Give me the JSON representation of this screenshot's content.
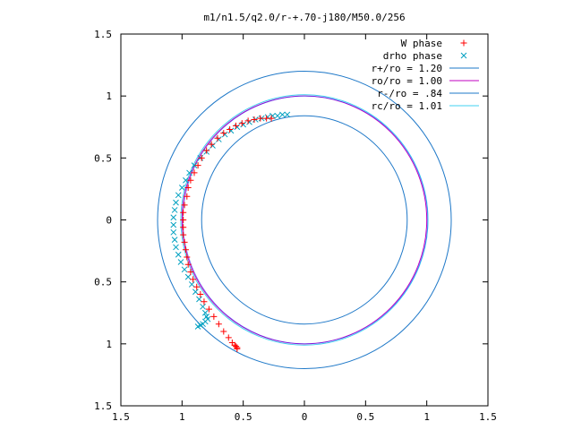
{
  "colors": {
    "w_phase": "#ff0000",
    "drho_phase": "#00a0c0",
    "r_plus": "#1e78c8",
    "ro": "#c000c0",
    "r_minus": "#1e78c8",
    "rc": "#40d0f0",
    "ro_overlay": "#2040ff",
    "axis": "#000000"
  },
  "chart_data": {
    "type": "scatter",
    "title": "m1/n1.5/q2.0/r-+.70-j180/M50.0/256",
    "xlabel": "",
    "ylabel": "",
    "xlim": [
      -1.5,
      1.5
    ],
    "ylim": [
      -1.5,
      1.5
    ],
    "x_ticks": [
      {
        "value": -1.5,
        "label": "1.5"
      },
      {
        "value": -1.0,
        "label": "1"
      },
      {
        "value": -0.5,
        "label": "0.5"
      },
      {
        "value": 0,
        "label": "0"
      },
      {
        "value": 0.5,
        "label": "0.5"
      },
      {
        "value": 1.0,
        "label": "1"
      },
      {
        "value": 1.5,
        "label": "1.5"
      }
    ],
    "y_ticks": [
      {
        "value": 1.5,
        "label": "1.5"
      },
      {
        "value": 1.0,
        "label": "1"
      },
      {
        "value": 0.5,
        "label": "0.5"
      },
      {
        "value": 0,
        "label": "0"
      },
      {
        "value": -0.5,
        "label": "0.5"
      },
      {
        "value": -1.0,
        "label": "1"
      },
      {
        "value": -1.5,
        "label": "1.5"
      }
    ],
    "grid": false,
    "legend_position": "top-right",
    "series": [
      {
        "name": "W phase",
        "marker": "plus",
        "points": [
          [
            -0.27,
            0.82
          ],
          [
            -0.31,
            0.82
          ],
          [
            -0.36,
            0.82
          ],
          [
            -0.41,
            0.81
          ],
          [
            -0.46,
            0.8
          ],
          [
            -0.51,
            0.78
          ],
          [
            -0.56,
            0.76
          ],
          [
            -0.61,
            0.73
          ],
          [
            -0.66,
            0.7
          ],
          [
            -0.71,
            0.66
          ],
          [
            -0.76,
            0.61
          ],
          [
            -0.8,
            0.56
          ],
          [
            -0.84,
            0.5
          ],
          [
            -0.87,
            0.44
          ],
          [
            -0.9,
            0.38
          ],
          [
            -0.93,
            0.32
          ],
          [
            -0.95,
            0.26
          ],
          [
            -0.96,
            0.19
          ],
          [
            -0.98,
            0.12
          ],
          [
            -0.99,
            0.06
          ],
          [
            -0.99,
            0.0
          ],
          [
            -0.99,
            -0.06
          ],
          [
            -0.99,
            -0.12
          ],
          [
            -0.98,
            -0.18
          ],
          [
            -0.97,
            -0.24
          ],
          [
            -0.96,
            -0.3
          ],
          [
            -0.95,
            -0.36
          ],
          [
            -0.93,
            -0.42
          ],
          [
            -0.91,
            -0.48
          ],
          [
            -0.88,
            -0.54
          ],
          [
            -0.85,
            -0.6
          ],
          [
            -0.82,
            -0.66
          ],
          [
            -0.78,
            -0.72
          ],
          [
            -0.74,
            -0.78
          ],
          [
            -0.7,
            -0.84
          ],
          [
            -0.66,
            -0.9
          ],
          [
            -0.62,
            -0.95
          ],
          [
            -0.59,
            -0.99
          ],
          [
            -0.57,
            -1.01
          ],
          [
            -0.56,
            -1.02
          ],
          [
            -0.55,
            -1.03
          ],
          [
            -0.55,
            -1.04
          ]
        ]
      },
      {
        "name": "drho phase",
        "marker": "cross",
        "points": [
          [
            -0.14,
            0.85
          ],
          [
            -0.18,
            0.85
          ],
          [
            -0.22,
            0.84
          ],
          [
            -0.26,
            0.84
          ],
          [
            -0.3,
            0.83
          ],
          [
            -0.35,
            0.82
          ],
          [
            -0.4,
            0.81
          ],
          [
            -0.45,
            0.79
          ],
          [
            -0.5,
            0.77
          ],
          [
            -0.55,
            0.75
          ],
          [
            -0.6,
            0.72
          ],
          [
            -0.65,
            0.69
          ],
          [
            -0.7,
            0.65
          ],
          [
            -0.75,
            0.6
          ],
          [
            -0.8,
            0.55
          ],
          [
            -0.85,
            0.5
          ],
          [
            -0.9,
            0.44
          ],
          [
            -0.94,
            0.38
          ],
          [
            -0.97,
            0.32
          ],
          [
            -1.0,
            0.26
          ],
          [
            -1.03,
            0.2
          ],
          [
            -1.05,
            0.14
          ],
          [
            -1.06,
            0.08
          ],
          [
            -1.07,
            0.02
          ],
          [
            -1.07,
            -0.04
          ],
          [
            -1.07,
            -0.1
          ],
          [
            -1.06,
            -0.16
          ],
          [
            -1.05,
            -0.22
          ],
          [
            -1.03,
            -0.28
          ],
          [
            -1.01,
            -0.34
          ],
          [
            -0.98,
            -0.4
          ],
          [
            -0.95,
            -0.46
          ],
          [
            -0.92,
            -0.52
          ],
          [
            -0.89,
            -0.58
          ],
          [
            -0.86,
            -0.64
          ],
          [
            -0.83,
            -0.7
          ],
          [
            -0.81,
            -0.75
          ],
          [
            -0.8,
            -0.78
          ],
          [
            -0.79,
            -0.8
          ],
          [
            -0.81,
            -0.82
          ],
          [
            -0.83,
            -0.84
          ],
          [
            -0.85,
            -0.85
          ],
          [
            -0.87,
            -0.86
          ]
        ]
      },
      {
        "name": "r+/ro = 1.20",
        "type": "circle",
        "radius": 1.2
      },
      {
        "name": "ro/ro = 1.00",
        "type": "circle",
        "radius": 1.0
      },
      {
        "name": "r-/ro = .84",
        "type": "circle",
        "radius": 0.84
      },
      {
        "name": "rc/ro = 1.01",
        "type": "circle",
        "radius": 1.01
      }
    ]
  }
}
